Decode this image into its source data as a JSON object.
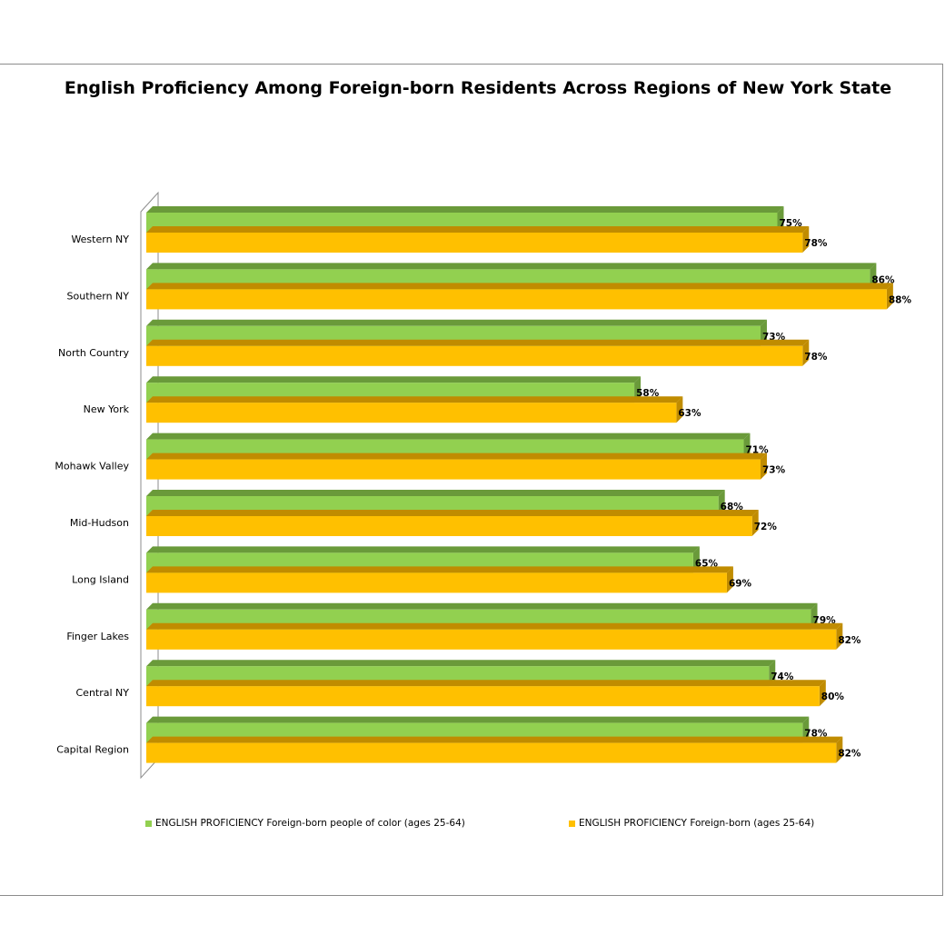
{
  "chart_data": {
    "type": "bar",
    "orientation": "horizontal",
    "title": "English Proficiency Among Foreign-born Residents Across Regions of New York State",
    "categories": [
      "Western NY",
      "Southern NY",
      "North Country",
      "New York",
      "Mohawk Valley",
      "Mid-Hudson",
      "Long Island",
      "Finger Lakes",
      "Central NY",
      "Capital Region"
    ],
    "series": [
      {
        "name": "ENGLISH PROFICIENCY Foreign-born people of color (ages 25-64)",
        "color": "#92d050",
        "values": [
          75,
          86,
          73,
          58,
          71,
          68,
          65,
          79,
          74,
          78
        ],
        "labels": [
          "75%",
          "86%",
          "73%",
          "58%",
          "71%",
          "68%",
          "65%",
          "79%",
          "74%",
          "78%"
        ]
      },
      {
        "name": "ENGLISH PROFICIENCY Foreign-born (ages 25-64)",
        "color": "#ffc000",
        "values": [
          78,
          88,
          78,
          63,
          73,
          72,
          69,
          82,
          80,
          82
        ],
        "labels": [
          "78%",
          "88%",
          "78%",
          "63%",
          "73%",
          "72%",
          "69%",
          "82%",
          "80%",
          "82%"
        ]
      }
    ],
    "xlim": [
      0,
      100
    ],
    "style": "3d-clustered-bar",
    "legend_position": "bottom",
    "grid": false
  }
}
